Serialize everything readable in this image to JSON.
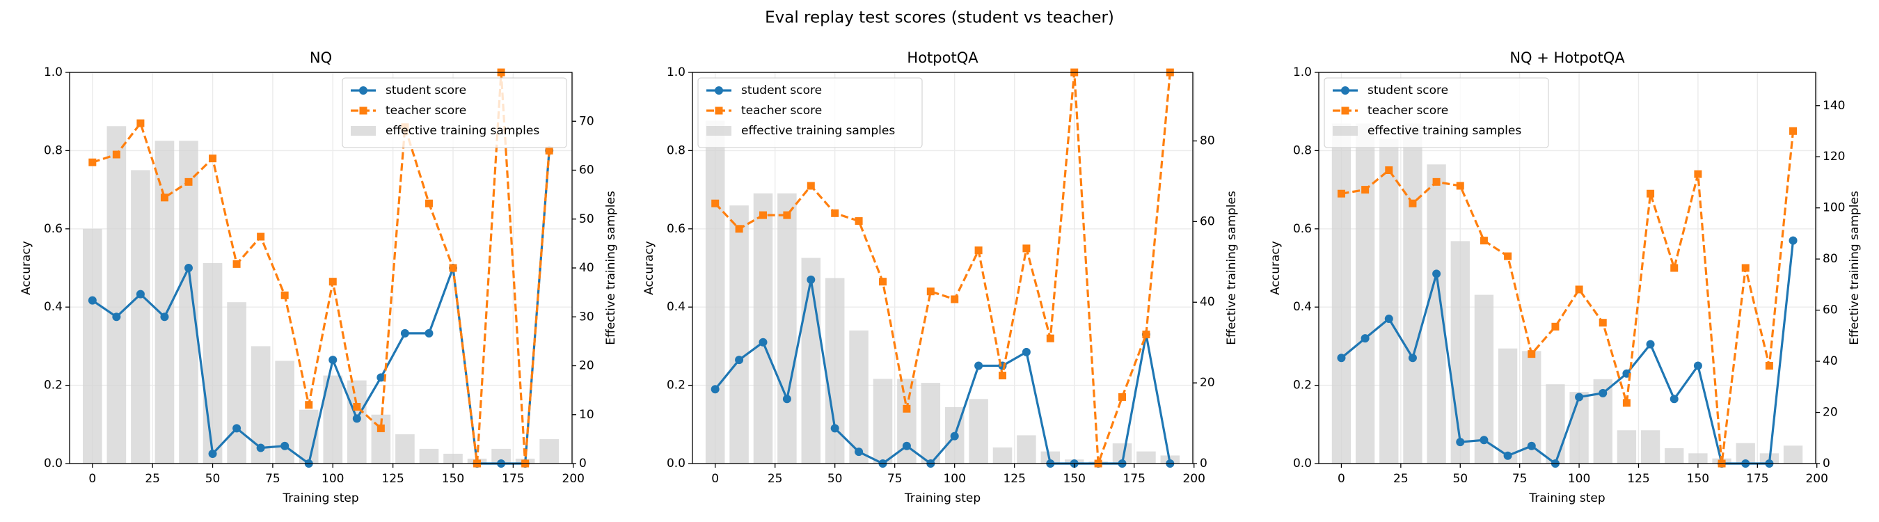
{
  "title": "Eval replay test scores (student vs teacher)",
  "chart_data": [
    {
      "type": "line",
      "title": "NQ",
      "xlabel": "Training step",
      "ylabel": "Accuracy",
      "y2label": "Effective training samples",
      "x": [
        0,
        10,
        20,
        30,
        40,
        50,
        60,
        70,
        80,
        90,
        100,
        110,
        120,
        130,
        140,
        150,
        160,
        170,
        180,
        190
      ],
      "series": [
        {
          "name": "student score",
          "type": "line",
          "color": "#1f77b4",
          "marker": "circle",
          "linestyle": "solid",
          "values": [
            0.417,
            0.375,
            0.433,
            0.375,
            0.5,
            0.025,
            0.09,
            0.04,
            0.045,
            0,
            0.265,
            0.115,
            0.22,
            0.333,
            0.333,
            0.5,
            0,
            0,
            0,
            0.8
          ]
        },
        {
          "name": "teacher score",
          "type": "line",
          "color": "#ff7f0e",
          "marker": "square",
          "linestyle": "dashed",
          "values": [
            0.77,
            0.79,
            0.87,
            0.68,
            0.72,
            0.78,
            0.51,
            0.58,
            0.43,
            0.15,
            0.465,
            0.145,
            0.09,
            0.86,
            0.665,
            0.5,
            0,
            1.0,
            0,
            0.8
          ]
        },
        {
          "name": "effective training samples",
          "type": "bar",
          "axis": "y2",
          "color": "#d3d3d3",
          "values": [
            48,
            69,
            60,
            66,
            66,
            41,
            33,
            24,
            21,
            11,
            18,
            17,
            10,
            6,
            3,
            2,
            1,
            3,
            1,
            5
          ]
        }
      ],
      "xlim": [
        -9.5,
        199.5
      ],
      "xticks": [
        0,
        25,
        50,
        75,
        100,
        125,
        150,
        175,
        200
      ],
      "ylim": [
        0,
        1
      ],
      "yticks": [
        {
          "value": 0,
          "label": "0.0"
        },
        0.2,
        0.4,
        0.6,
        0.8,
        {
          "value": 1,
          "label": "1.0"
        }
      ],
      "y2lim": [
        0,
        80
      ],
      "y2ticks": [
        0,
        10,
        20,
        30,
        40,
        50,
        60,
        70
      ],
      "grid": true,
      "legend": "upper right"
    },
    {
      "type": "line",
      "title": "HotpotQA",
      "xlabel": "Training step",
      "ylabel": "Accuracy",
      "y2label": "Effective training samples",
      "x": [
        0,
        10,
        20,
        30,
        40,
        50,
        60,
        70,
        80,
        90,
        100,
        110,
        120,
        130,
        140,
        150,
        160,
        170,
        180,
        190
      ],
      "series": [
        {
          "name": "student score",
          "type": "line",
          "color": "#1f77b4",
          "marker": "circle",
          "linestyle": "solid",
          "values": [
            0.19,
            0.265,
            0.31,
            0.165,
            0.47,
            0.09,
            0.03,
            0,
            0.045,
            0,
            0.07,
            0.25,
            0.25,
            0.285,
            0,
            0,
            0,
            0,
            0.33,
            0
          ]
        },
        {
          "name": "teacher score",
          "type": "line",
          "color": "#ff7f0e",
          "marker": "square",
          "linestyle": "dashed",
          "values": [
            0.665,
            0.6,
            0.635,
            0.635,
            0.71,
            0.64,
            0.62,
            0.465,
            0.14,
            0.44,
            0.42,
            0.545,
            0.225,
            0.55,
            0.32,
            1.0,
            0,
            0.17,
            0.33,
            1.0
          ]
        },
        {
          "name": "effective training samples",
          "type": "bar",
          "axis": "y2",
          "color": "#d3d3d3",
          "values": [
            85,
            64,
            67,
            67,
            51,
            46,
            33,
            21,
            21,
            20,
            14,
            16,
            4,
            7,
            3,
            1,
            0.5,
            5,
            3,
            2
          ]
        }
      ],
      "xlim": [
        -9.5,
        199.5
      ],
      "xticks": [
        0,
        25,
        50,
        75,
        100,
        125,
        150,
        175,
        200
      ],
      "ylim": [
        0,
        1
      ],
      "yticks": [
        {
          "value": 0,
          "label": "0.0"
        },
        0.2,
        0.4,
        0.6,
        0.8,
        {
          "value": 1,
          "label": "1.0"
        }
      ],
      "y2lim": [
        0,
        97
      ],
      "y2ticks": [
        0,
        20,
        40,
        60,
        80
      ],
      "grid": true,
      "legend": "upper left"
    },
    {
      "type": "line",
      "title": "NQ + HotpotQA",
      "xlabel": "Training step",
      "ylabel": "Accuracy",
      "y2label": "Effective training samples",
      "x": [
        0,
        10,
        20,
        30,
        40,
        50,
        60,
        70,
        80,
        90,
        100,
        110,
        120,
        130,
        140,
        150,
        160,
        170,
        180,
        190
      ],
      "series": [
        {
          "name": "student score",
          "type": "line",
          "color": "#1f77b4",
          "marker": "circle",
          "linestyle": "solid",
          "values": [
            0.27,
            0.32,
            0.37,
            0.27,
            0.485,
            0.055,
            0.06,
            0.02,
            0.045,
            0,
            0.17,
            0.18,
            0.23,
            0.305,
            0.165,
            0.25,
            0,
            0,
            0,
            0.57
          ]
        },
        {
          "name": "teacher score",
          "type": "line",
          "color": "#ff7f0e",
          "marker": "square",
          "linestyle": "dashed",
          "values": [
            0.69,
            0.7,
            0.75,
            0.665,
            0.72,
            0.71,
            0.57,
            0.53,
            0.28,
            0.35,
            0.445,
            0.36,
            0.155,
            0.69,
            0.5,
            0.74,
            0,
            0.5,
            0.25,
            0.85
          ]
        },
        {
          "name": "effective training samples",
          "type": "bar",
          "axis": "y2",
          "color": "#d3d3d3",
          "values": [
            133,
            133,
            127,
            133,
            117,
            87,
            66,
            45,
            44,
            31,
            28,
            33,
            13,
            13,
            6,
            4,
            2,
            8,
            4,
            7
          ]
        }
      ],
      "xlim": [
        -9.5,
        199.5
      ],
      "xticks": [
        0,
        25,
        50,
        75,
        100,
        125,
        150,
        175,
        200
      ],
      "ylim": [
        0,
        1
      ],
      "yticks": [
        {
          "value": 0,
          "label": "0.0"
        },
        0.2,
        0.4,
        0.6,
        0.8,
        {
          "value": 1,
          "label": "1.0"
        }
      ],
      "y2lim": [
        0,
        153
      ],
      "y2ticks": [
        0,
        20,
        40,
        60,
        80,
        100,
        120,
        140
      ],
      "grid": true,
      "legend": "upper left"
    }
  ]
}
